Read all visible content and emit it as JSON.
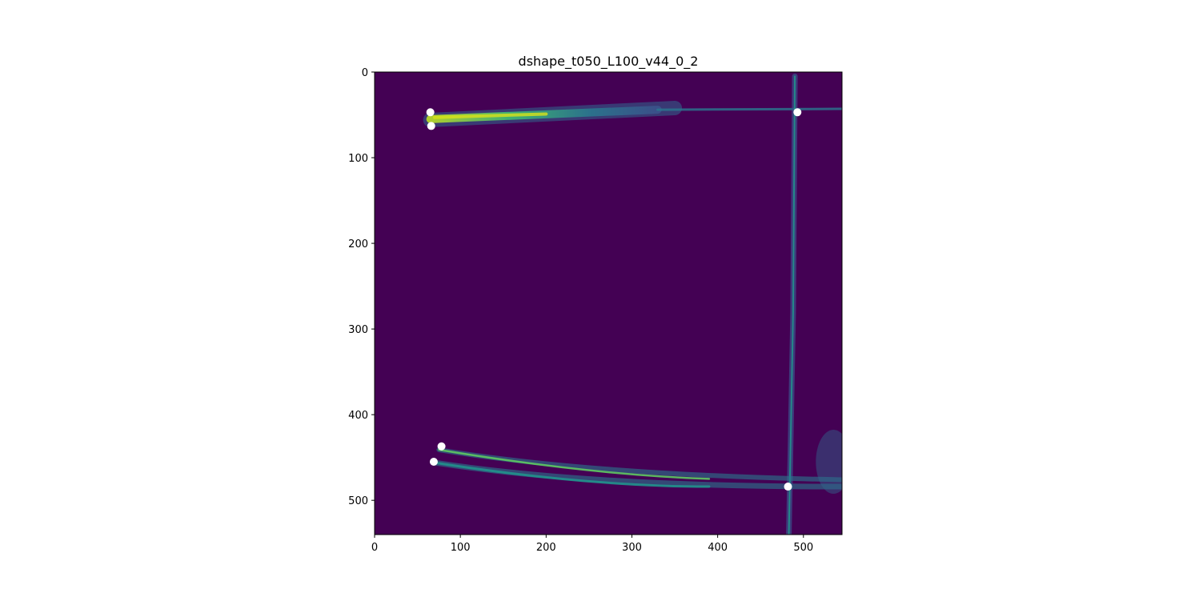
{
  "chart_data": {
    "type": "heatmap",
    "title": "dshape_t050_L100_v44_0_2",
    "xlabel": "",
    "ylabel": "",
    "xlim": [
      0,
      545
    ],
    "ylim": [
      540,
      0
    ],
    "x_ticks": [
      0,
      100,
      200,
      300,
      400,
      500
    ],
    "y_ticks": [
      0,
      100,
      200,
      300,
      400,
      500
    ],
    "colormap": "viridis",
    "background_color": "#440154",
    "grid": false,
    "points": [
      {
        "x": 65,
        "y": 47
      },
      {
        "x": 66,
        "y": 63
      },
      {
        "x": 493,
        "y": 47
      },
      {
        "x": 78,
        "y": 437
      },
      {
        "x": 69,
        "y": 455
      },
      {
        "x": 482,
        "y": 484
      }
    ],
    "point_color": "#ffffff"
  }
}
